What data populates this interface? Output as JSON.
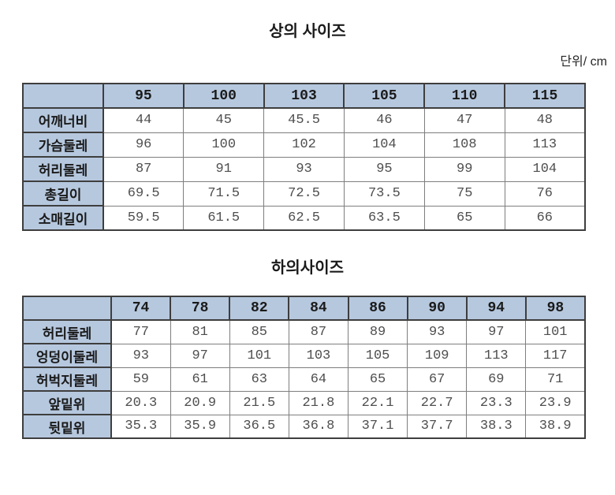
{
  "page": {
    "unit_label": "단위/ cm"
  },
  "colors": {
    "header_bg": "#b6c8de",
    "border_dark": "#3e3e3e",
    "border_light": "#7e7e7e",
    "data_text": "#4e4e4e"
  },
  "tables": [
    {
      "title": "상의 사이즈",
      "columns": [
        "",
        "95",
        "100",
        "103",
        "105",
        "110",
        "115"
      ],
      "rows": [
        {
          "label": "어깨너비",
          "values": [
            "44",
            "45",
            "45.5",
            "46",
            "47",
            "48"
          ]
        },
        {
          "label": "가슴둘레",
          "values": [
            "96",
            "100",
            "102",
            "104",
            "108",
            "113"
          ]
        },
        {
          "label": "허리둘레",
          "values": [
            "87",
            "91",
            "93",
            "95",
            "99",
            "104"
          ]
        },
        {
          "label": "총길이",
          "values": [
            "69.5",
            "71.5",
            "72.5",
            "73.5",
            "75",
            "76"
          ]
        },
        {
          "label": "소매길이",
          "values": [
            "59.5",
            "61.5",
            "62.5",
            "63.5",
            "65",
            "66"
          ]
        }
      ]
    },
    {
      "title": "하의사이즈",
      "columns": [
        "",
        "74",
        "78",
        "82",
        "84",
        "86",
        "90",
        "94",
        "98"
      ],
      "rows": [
        {
          "label": "허리둘레",
          "values": [
            "77",
            "81",
            "85",
            "87",
            "89",
            "93",
            "97",
            "101"
          ]
        },
        {
          "label": "엉덩이둘레",
          "values": [
            "93",
            "97",
            "101",
            "103",
            "105",
            "109",
            "113",
            "117"
          ]
        },
        {
          "label": "허벅지둘레",
          "values": [
            "59",
            "61",
            "63",
            "64",
            "65",
            "67",
            "69",
            "71"
          ]
        },
        {
          "label": "앞밑위",
          "values": [
            "20.3",
            "20.9",
            "21.5",
            "21.8",
            "22.1",
            "22.7",
            "23.3",
            "23.9"
          ]
        },
        {
          "label": "뒷밑위",
          "values": [
            "35.3",
            "35.9",
            "36.5",
            "36.8",
            "37.1",
            "37.7",
            "38.3",
            "38.9"
          ]
        }
      ]
    }
  ]
}
